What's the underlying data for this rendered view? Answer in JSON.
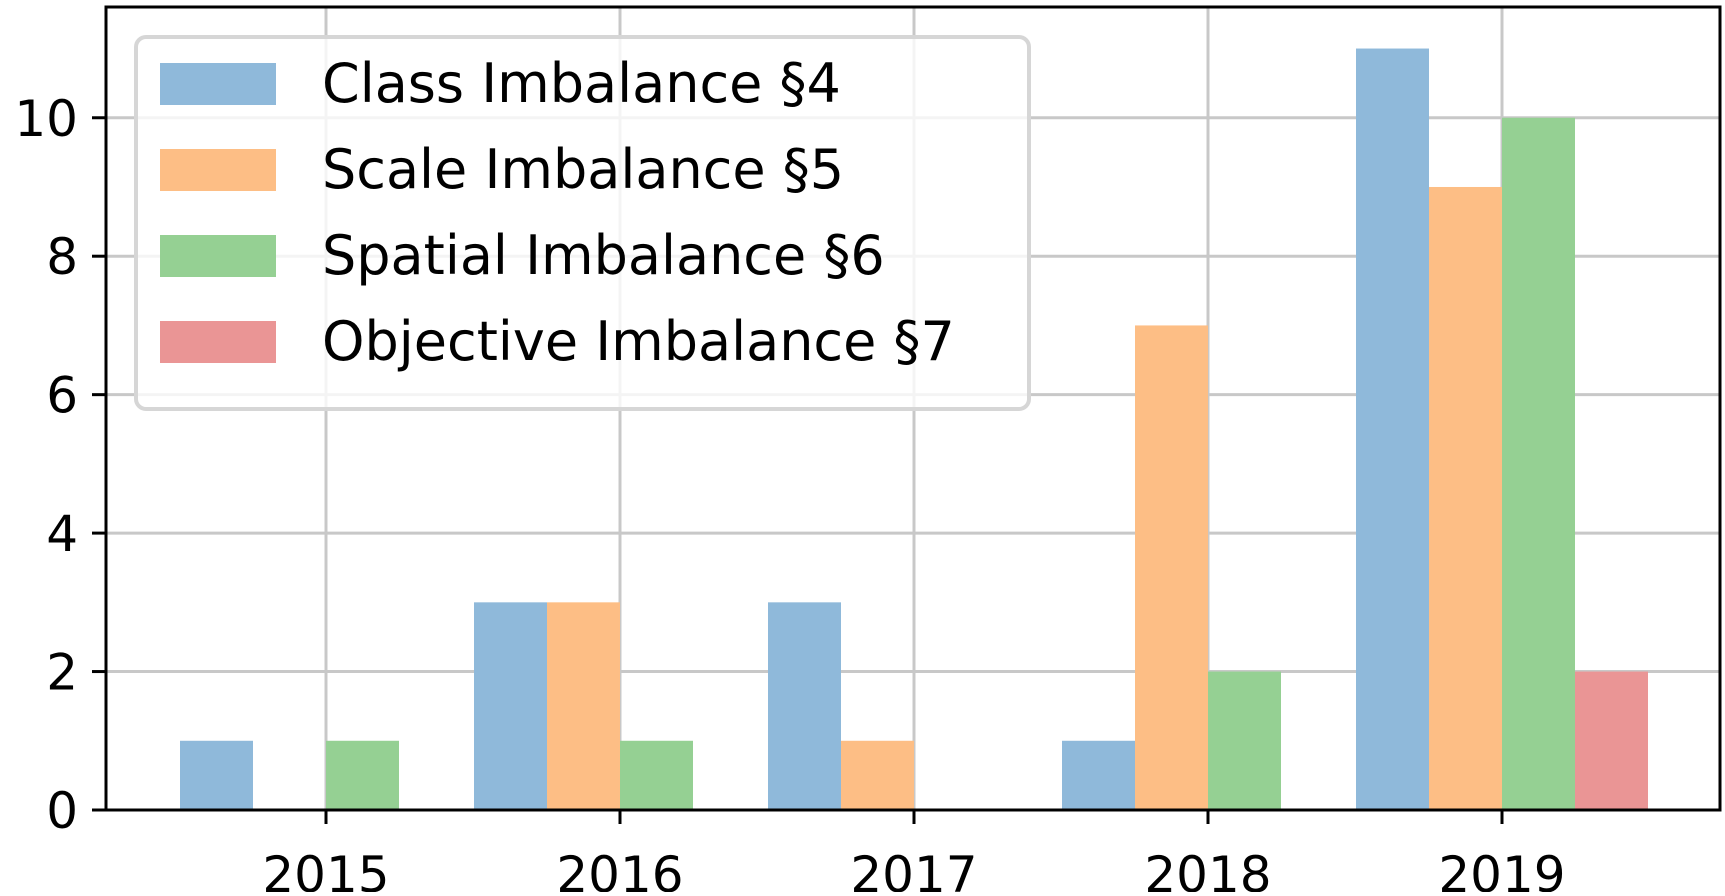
{
  "chart_data": {
    "type": "bar",
    "title": "",
    "xlabel": "",
    "ylabel": "",
    "categories": [
      "2015",
      "2016",
      "2017",
      "2018",
      "2019"
    ],
    "series": [
      {
        "name": "Class Imbalance §4",
        "color": "#8fb9da",
        "values": [
          1,
          3,
          3,
          1,
          11
        ]
      },
      {
        "name": "Scale Imbalance §5",
        "color": "#fdbe85",
        "values": [
          0,
          3,
          1,
          7,
          9
        ]
      },
      {
        "name": "Spatial Imbalance §6",
        "color": "#95d093",
        "values": [
          1,
          1,
          0,
          2,
          10
        ]
      },
      {
        "name": "Objective Imbalance §7",
        "color": "#ea9595",
        "values": [
          0,
          0,
          0,
          0,
          2
        ]
      }
    ],
    "ylim": [
      0,
      11.6
    ],
    "yticks": [
      0,
      2,
      4,
      6,
      8,
      10
    ],
    "grid": true,
    "legend_position": "top-left"
  }
}
